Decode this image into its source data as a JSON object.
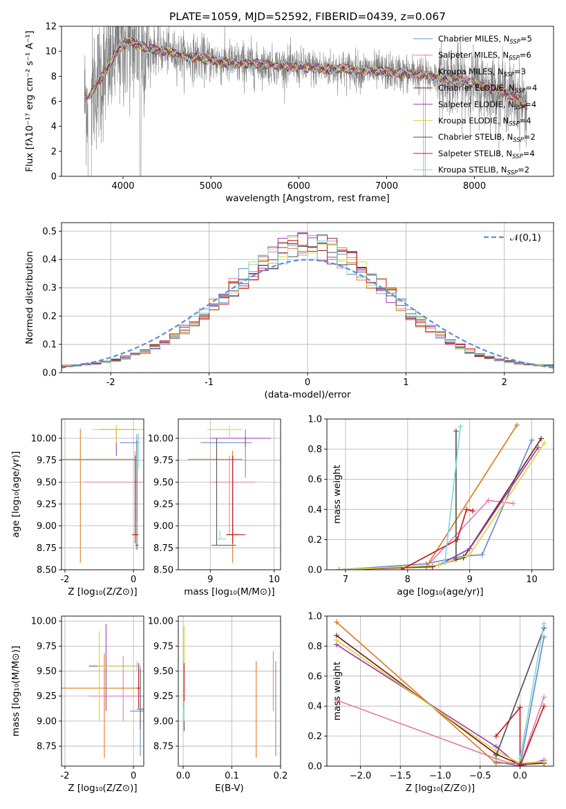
{
  "palette": [
    "#6a8ccf",
    "#e57fb3",
    "#e07a1f",
    "#7a1d1d",
    "#9a3fb0",
    "#d8d83a",
    "#555555",
    "#c81e1e",
    "#7fd8dd"
  ],
  "chart_data": [
    {
      "id": "spectrum",
      "type": "line",
      "title": "PLATE=1059, MJD=52592, FIBERID=0439, z=0.067",
      "xlabel": "wavelength [Angstrom, rest frame]",
      "ylabel": "Flux [fλ10⁻¹⁷ erg cm⁻² s⁻¹ A⁻¹]",
      "xlim": [
        3300,
        8900
      ],
      "ylim": [
        0,
        12
      ],
      "xticks": [
        4000,
        5000,
        6000,
        7000,
        8000
      ],
      "yticks": [
        0,
        2,
        4,
        6,
        8,
        10,
        12
      ],
      "legend_position": "right",
      "legend": [
        "Chabrier MILES, N_SSP=5",
        "Salpeter MILES, N_SSP=6",
        "Kroupa MILES, N_SSP=3",
        "Chabrier ELODIE, N_SSP=4",
        "Salpeter ELODIE, N_SSP=4",
        "Kroupa ELODIE, N_SSP=4",
        "Chabrier STELIB, N_SSP=2",
        "Salpeter STELIB, N_SSP=4",
        "Kroupa STELIB, N_SSP=2"
      ],
      "continuum": {
        "x": [
          3560,
          3650,
          3800,
          3950,
          4050,
          4150,
          4300,
          4500,
          4700,
          4900,
          5100,
          5300,
          5500,
          5700,
          5900,
          6100,
          6300,
          6500,
          6700,
          6900,
          7100,
          7300,
          7500,
          7700,
          7900,
          8100,
          8300,
          8500,
          8600
        ],
        "y": [
          6.0,
          6.8,
          8.4,
          10.2,
          10.8,
          10.6,
          10.2,
          10.0,
          9.6,
          9.4,
          9.2,
          9.0,
          9.0,
          8.9,
          8.8,
          8.7,
          8.6,
          8.6,
          8.5,
          8.4,
          8.3,
          8.2,
          8.0,
          7.8,
          7.6,
          7.2,
          6.8,
          6.2,
          5.6
        ]
      }
    },
    {
      "id": "residuals",
      "type": "histogram",
      "xlabel": "(data-model)/error",
      "ylabel": "Normed distribution",
      "xlim": [
        -2.5,
        2.5
      ],
      "ylim": [
        0,
        0.53
      ],
      "xticks": [
        -2,
        -1,
        0,
        1,
        2
      ],
      "yticks": [
        0.0,
        0.1,
        0.2,
        0.3,
        0.4,
        0.5
      ],
      "legend": "𝒩(0,1)",
      "legend_position": "top-right",
      "bin_width": 0.1,
      "reference_gaussian": {
        "mean": 0,
        "sigma": 1
      }
    },
    {
      "id": "age-vs-Z",
      "type": "errorbar",
      "xlabel": "Z [log₁₀(Z/Z⊙)]",
      "ylabel": "age  [log₁₀(age/yr)]",
      "xlim": [
        -2.1,
        0.3
      ],
      "ylim": [
        8.5,
        10.22
      ],
      "xticks": [
        -2,
        0
      ],
      "yticks": [
        8.5,
        8.75,
        9.0,
        9.25,
        9.5,
        9.75,
        10.0
      ],
      "points": [
        {
          "x": 0.1,
          "y": 9.95,
          "xerr": [
            0.5,
            0.1
          ],
          "yerr": [
            0.9,
            0.1
          ]
        },
        {
          "x": 0.05,
          "y": 9.5,
          "xerr": [
            1.5,
            0.2
          ],
          "yerr": [
            0.45,
            0.35
          ]
        },
        {
          "x": -1.55,
          "y": 9.76,
          "xerr": [
            0.55,
            1.6
          ],
          "yerr": [
            1.18,
            0.35
          ]
        },
        {
          "x": 0.05,
          "y": 8.9,
          "xerr": [
            0.05,
            0.05
          ],
          "yerr": [
            0.0,
            0.9
          ]
        },
        {
          "x": -0.5,
          "y": 10.1,
          "xerr": [
            0.5,
            0.6
          ],
          "yerr": [
            0.3,
            0.02
          ]
        },
        {
          "x": -0.5,
          "y": 10.1,
          "xerr": [
            0.7,
            0.8
          ],
          "yerr": [
            0.15,
            0.05
          ]
        },
        {
          "x": 0.1,
          "y": 8.78,
          "xerr": [
            0.05,
            0.05
          ],
          "yerr": [
            0.05,
            1.2
          ]
        },
        {
          "x": 0.05,
          "y": 8.9,
          "xerr": [
            0.1,
            0.1
          ],
          "yerr": [
            0.1,
            0.1
          ]
        },
        {
          "x": 0.15,
          "y": 9.95,
          "xerr": [
            0.05,
            0.05
          ],
          "yerr": [
            0.3,
            0.1
          ]
        }
      ]
    },
    {
      "id": "age-vs-mass",
      "type": "errorbar",
      "xlabel": "mass [log₁₀(M/M⊙)]",
      "ylabel": "",
      "xlim": [
        8.5,
        10.1
      ],
      "ylim": [
        8.5,
        10.22
      ],
      "xticks": [
        9,
        10
      ],
      "yticks": [
        8.5,
        8.75,
        9.0,
        9.25,
        9.5,
        9.75,
        10.0
      ],
      "points": [
        {
          "x": 9.55,
          "y": 9.95,
          "xerr": [
            0.7,
            0.1
          ],
          "yerr": [
            0.4,
            0.15
          ]
        },
        {
          "x": 9.3,
          "y": 9.5,
          "xerr": [
            0.3,
            0.4
          ],
          "yerr": [
            0.6,
            0.3
          ]
        },
        {
          "x": 9.35,
          "y": 9.76,
          "xerr": [
            0.7,
            0.15
          ],
          "yerr": [
            1.18,
            0.1
          ]
        },
        {
          "x": 9.35,
          "y": 8.9,
          "xerr": [
            0.1,
            0.1
          ],
          "yerr": [
            0.1,
            0.9
          ]
        },
        {
          "x": 9.55,
          "y": 10.0,
          "xerr": [
            0.55,
            0.4
          ],
          "yerr": [
            0.1,
            0.02
          ]
        },
        {
          "x": 9.3,
          "y": 10.1,
          "xerr": [
            0.35,
            0.2
          ],
          "yerr": [
            0.1,
            0.05
          ]
        },
        {
          "x": 9.1,
          "y": 8.78,
          "xerr": [
            0.08,
            0.3
          ],
          "yerr": [
            0.0,
            1.22
          ]
        },
        {
          "x": 9.35,
          "y": 8.9,
          "xerr": [
            0.05,
            0.2
          ],
          "yerr": [
            0.1,
            0.9
          ]
        },
        {
          "x": 9.15,
          "y": 8.85,
          "xerr": [
            0.05,
            0.1
          ],
          "yerr": [
            0.0,
            0.1
          ]
        }
      ]
    },
    {
      "id": "mass-weight-vs-age",
      "type": "line",
      "xlabel": "age  [log₁₀(age/yr)]",
      "ylabel": "mass weight",
      "xlim": [
        6.7,
        10.35
      ],
      "ylim": [
        0,
        1.0
      ],
      "xticks": [
        7,
        8,
        9,
        10
      ],
      "yticks": [
        0.0,
        0.2,
        0.4,
        0.6,
        0.8,
        1.0
      ],
      "series": [
        {
          "x": [
            6.9,
            8.3,
            8.9,
            9.2,
            10.0
          ],
          "y": [
            0.0,
            0.04,
            0.09,
            0.1,
            0.86
          ]
        },
        {
          "x": [
            6.9,
            8.3,
            9.3,
            9.7
          ],
          "y": [
            0.0,
            0.02,
            0.46,
            0.44
          ]
        },
        {
          "x": [
            6.9,
            8.3,
            9.76
          ],
          "y": [
            0.0,
            0.02,
            0.96
          ]
        },
        {
          "x": [
            6.9,
            8.4,
            8.9,
            10.15
          ],
          "y": [
            0.0,
            0.02,
            0.08,
            0.87
          ]
        },
        {
          "x": [
            6.9,
            8.5,
            9.0,
            10.1
          ],
          "y": [
            0.0,
            0.03,
            0.14,
            0.81
          ]
        },
        {
          "x": [
            6.9,
            8.5,
            9.0,
            10.2
          ],
          "y": [
            0.0,
            0.03,
            0.1,
            0.84
          ]
        },
        {
          "x": [
            8.78,
            8.78
          ],
          "y": [
            0.07,
            0.92
          ]
        },
        {
          "x": [
            7.9,
            8.8,
            8.95,
            9.05
          ],
          "y": [
            0.0,
            0.2,
            0.4,
            0.39
          ]
        },
        {
          "x": [
            8.6,
            8.85
          ],
          "y": [
            0.05,
            0.95
          ]
        }
      ]
    },
    {
      "id": "mass-vs-Z",
      "type": "errorbar",
      "xlabel": "Z [log₁₀(Z/Z⊙)]",
      "ylabel": "mass [log₁₀(M/M⊙)]",
      "xlim": [
        -2.1,
        0.3
      ],
      "ylim": [
        8.55,
        10.05
      ],
      "xticks": [
        -2,
        0
      ],
      "yticks": [
        8.75,
        9.0,
        9.25,
        9.5,
        9.75,
        10.0
      ],
      "points": [
        {
          "x": 0.2,
          "y": 9.1,
          "xerr": [
            0.3,
            0.1
          ],
          "yerr": [
            0.45,
            0.45
          ]
        },
        {
          "x": -0.3,
          "y": 9.25,
          "xerr": [
            1.0,
            0.6
          ],
          "yerr": [
            0.25,
            0.4
          ]
        },
        {
          "x": -0.85,
          "y": 9.33,
          "xerr": [
            1.45,
            1.0
          ],
          "yerr": [
            0.7,
            0.35
          ]
        },
        {
          "x": 0.15,
          "y": 9.33,
          "xerr": [
            0.05,
            0.05
          ],
          "yerr": [
            0.05,
            0.05
          ]
        },
        {
          "x": -0.8,
          "y": 9.55,
          "xerr": [
            0.5,
            0.9
          ],
          "yerr": [
            0.45,
            0.42
          ]
        },
        {
          "x": -1.0,
          "y": 9.55,
          "xerr": [
            0.05,
            1.2
          ],
          "yerr": [
            0.55,
            0.35
          ]
        },
        {
          "x": 0.2,
          "y": 9.12,
          "xerr": [
            0.1,
            0.1
          ],
          "yerr": [
            0.2,
            0.4
          ]
        },
        {
          "x": 0.15,
          "y": 9.33,
          "xerr": [
            0.05,
            0.05
          ],
          "yerr": [
            0.2,
            0.25
          ]
        },
        {
          "x": 0.1,
          "y": 9.55,
          "xerr": [
            0.05,
            0.05
          ],
          "yerr": [
            0.05,
            0.05
          ]
        }
      ]
    },
    {
      "id": "mass-vs-ebv",
      "type": "errorbar",
      "xlabel": "E(B-V)",
      "ylabel": "",
      "xlim": [
        -0.01,
        0.2
      ],
      "ylim": [
        8.55,
        10.05
      ],
      "xticks": [
        0.0,
        0.1,
        0.2
      ],
      "yticks": [
        8.75,
        9.0,
        9.25,
        9.5,
        9.75,
        10.0
      ],
      "points": [
        {
          "x": 0.19,
          "y": 9.1,
          "xerr": [
            0,
            0
          ],
          "yerr": [
            0.45,
            0.5
          ]
        },
        {
          "x": 0.185,
          "y": 9.3,
          "xerr": [
            0,
            0
          ],
          "yerr": [
            0.2,
            0.4
          ]
        },
        {
          "x": 0.15,
          "y": 9.1,
          "xerr": [
            0,
            0
          ],
          "yerr": [
            0.47,
            0.5
          ]
        },
        {
          "x": 0.002,
          "y": 9.33,
          "xerr": [
            0,
            0
          ],
          "yerr": [
            0.2,
            0.25
          ]
        },
        {
          "x": 0.002,
          "y": 9.5,
          "xerr": [
            0,
            0
          ],
          "yerr": [
            0.4,
            0.45
          ]
        },
        {
          "x": 0.002,
          "y": 9.55,
          "xerr": [
            0,
            0
          ],
          "yerr": [
            0.6,
            0.4
          ]
        },
        {
          "x": 0.002,
          "y": 9.1,
          "xerr": [
            0,
            0
          ],
          "yerr": [
            0.2,
            0.2
          ]
        },
        {
          "x": 0.002,
          "y": 9.33,
          "xerr": [
            0,
            0
          ],
          "yerr": [
            0.2,
            0.25
          ]
        },
        {
          "x": 0.002,
          "y": 9.1,
          "xerr": [
            0,
            0
          ],
          "yerr": [
            0.1,
            0.1
          ]
        }
      ]
    },
    {
      "id": "mass-weight-vs-Z",
      "type": "line",
      "xlabel": "Z [log₁₀(Z/Z⊙)]",
      "ylabel": "mass weight",
      "xlim": [
        -2.42,
        0.42
      ],
      "ylim": [
        0,
        1.0
      ],
      "xticks": [
        -2.0,
        -1.5,
        -1.0,
        -0.5,
        0.0
      ],
      "yticks": [
        0.0,
        0.2,
        0.4,
        0.6,
        0.8,
        1.0
      ],
      "series": [
        {
          "x": [
            -0.3,
            0.0,
            0.3
          ],
          "y": [
            0.03,
            0.0,
            0.86
          ]
        },
        {
          "x": [
            -2.3,
            -0.3,
            0.0,
            0.3
          ],
          "y": [
            0.44,
            0.05,
            0.0,
            0.46
          ]
        },
        {
          "x": [
            -2.3,
            -0.3,
            0.0,
            0.3
          ],
          "y": [
            0.96,
            0.02,
            0.02,
            0.02
          ]
        },
        {
          "x": [
            -2.3,
            -0.3,
            0.0,
            0.3
          ],
          "y": [
            0.87,
            0.08,
            0.01,
            0.02
          ]
        },
        {
          "x": [
            -2.3,
            -0.3,
            0.0,
            0.3
          ],
          "y": [
            0.81,
            0.13,
            0.0,
            0.04
          ]
        },
        {
          "x": [
            -2.3,
            -0.3,
            0.0,
            0.3
          ],
          "y": [
            0.84,
            0.1,
            0.02,
            0.03
          ]
        },
        {
          "x": [
            -0.3,
            0.3
          ],
          "y": [
            0.07,
            0.92
          ]
        },
        {
          "x": [
            -0.3,
            0.0,
            0.0,
            0.3
          ],
          "y": [
            0.2,
            0.39,
            0.0,
            0.4
          ]
        },
        {
          "x": [
            0.0,
            0.3
          ],
          "y": [
            0.05,
            0.95
          ]
        }
      ]
    }
  ]
}
